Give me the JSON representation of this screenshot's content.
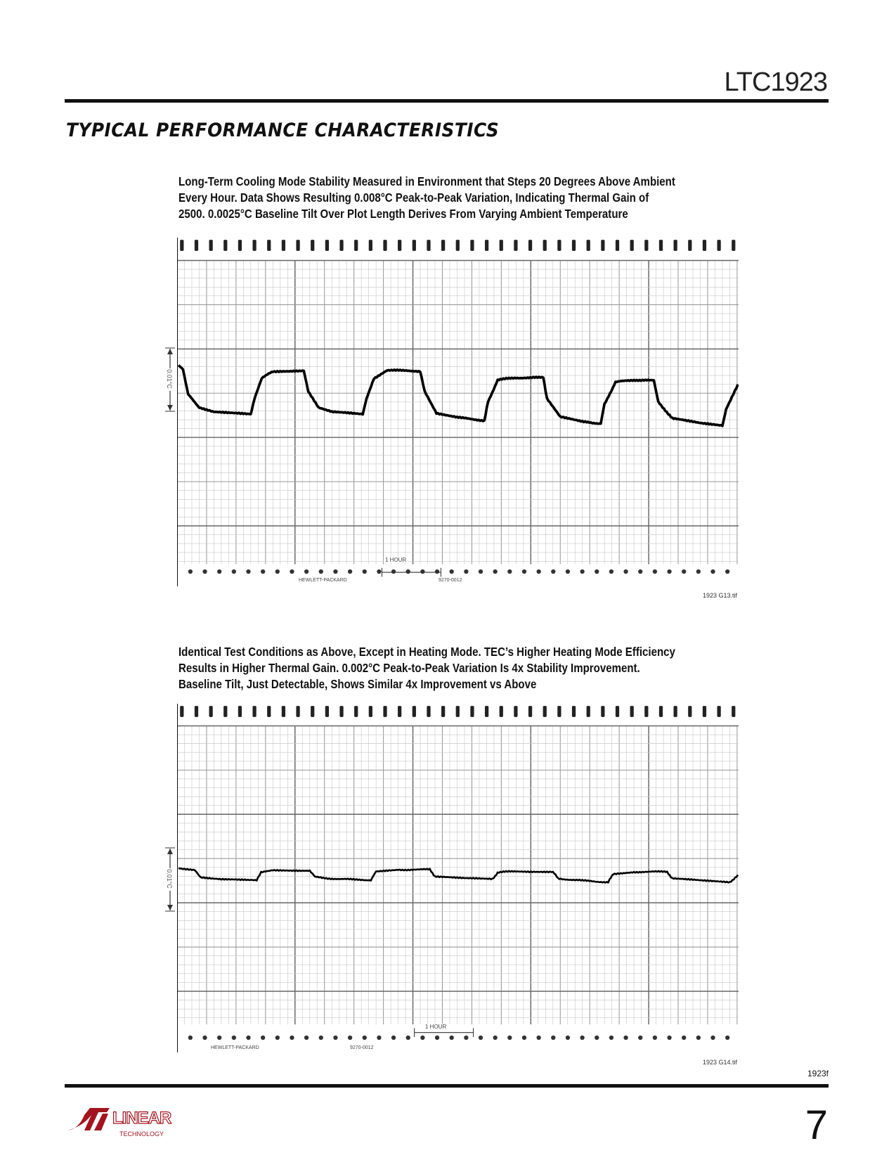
{
  "header": {
    "part_number": "LTC1923"
  },
  "section_title": "TYPICAL PERFORMANCE CHARACTERISTICS",
  "figures": [
    {
      "caption": [
        "Long-Term Cooling Mode Stability Measured in Environment that Steps 20 Degrees Above Ambient",
        "Every Hour. Data Shows Resulting 0.008°C Peak-to-Peak Variation, Indicating Thermal Gain of",
        "2500. 0.0025°C Baseline Tilt Over Plot Length Derives From Varying Ambient Temperature"
      ],
      "vertical_scale": "0.01°C",
      "time_scale": "1 HOUR",
      "paper_brand": "HEWLETT-PACKARD",
      "paper_code": "9270-0012",
      "file_label": "1923 G13.tif"
    },
    {
      "caption": [
        "Identical Test Conditions as Above, Except in Heating Mode. TEC’s Higher Heating Mode Efficiency",
        "Results in Higher Thermal Gain. 0.002°C Peak-to-Peak Variation Is 4x Stability Improvement.",
        "Baseline Tilt, Just Detectable, Shows Similar 4x Improvement vs Above"
      ],
      "vertical_scale": "0.01°C",
      "time_scale": "1 HOUR",
      "paper_brand": "HEWLETT-PACKARD",
      "paper_code": "9270-0012",
      "file_label": "1923 G14.tif"
    }
  ],
  "footer": {
    "doc_code": "1923f",
    "page_number": "7",
    "logo_text": "LINEAR TECHNOLOGY",
    "brand_color": "#a3141f"
  }
}
